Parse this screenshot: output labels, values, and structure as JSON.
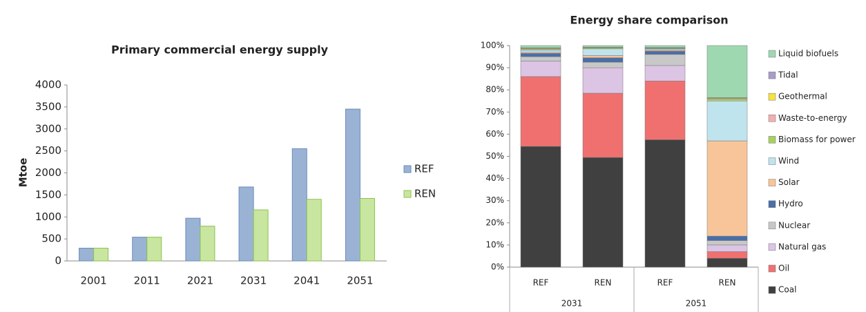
{
  "chart_data": [
    {
      "type": "bar",
      "title": "Primary commercial energy supply",
      "ylabel": "Mtoe",
      "categories": [
        "2001",
        "2011",
        "2021",
        "2031",
        "2041",
        "2051"
      ],
      "series": [
        {
          "name": "REF",
          "color": "#9ab3d5",
          "values": [
            290,
            540,
            970,
            1680,
            2550,
            3450
          ]
        },
        {
          "name": "REN",
          "color": "#c8e6a0",
          "values": [
            290,
            540,
            790,
            1160,
            1400,
            1420
          ]
        }
      ],
      "ylim": [
        0,
        4000
      ],
      "yticks": [
        0,
        500,
        1000,
        1500,
        2000,
        2500,
        3000,
        3500,
        4000
      ],
      "legend": "right"
    },
    {
      "type": "stacked_bar",
      "title": "Energy share comparison",
      "categories": [
        "REF",
        "REN",
        "REF",
        "REN"
      ],
      "groups": [
        "2031",
        "2051"
      ],
      "series": [
        {
          "name": "Coal",
          "color": "#404040",
          "values": [
            54.5,
            49.5,
            57.5,
            4
          ]
        },
        {
          "name": "Oil",
          "color": "#f07070",
          "values": [
            31.5,
            29,
            26.5,
            3
          ]
        },
        {
          "name": "Natural gas",
          "color": "#dcc4e4",
          "values": [
            7,
            11.5,
            7,
            3
          ]
        },
        {
          "name": "Nuclear",
          "color": "#c8c8c8",
          "values": [
            2,
            2.5,
            5,
            2
          ]
        },
        {
          "name": "Hydro",
          "color": "#4a6ea8",
          "values": [
            1.5,
            2,
            1.5,
            2
          ]
        },
        {
          "name": "Solar",
          "color": "#f8c49a",
          "values": [
            0.5,
            1,
            0.5,
            43
          ]
        },
        {
          "name": "Wind",
          "color": "#bfe4ee",
          "values": [
            1,
            3,
            0.5,
            18
          ]
        },
        {
          "name": "Biomass for power",
          "color": "#a8d060",
          "values": [
            0.5,
            0.5,
            0.3,
            1
          ]
        },
        {
          "name": "Waste-to-energy",
          "color": "#f0b0b0",
          "values": [
            0.3,
            0.2,
            0.2,
            0.3
          ]
        },
        {
          "name": "Geothermal",
          "color": "#f8e040",
          "values": [
            0.2,
            0.1,
            0.1,
            0.2
          ]
        },
        {
          "name": "Tidal",
          "color": "#a89cc8",
          "values": [
            0,
            0,
            0,
            0
          ]
        },
        {
          "name": "Liquid biofuels",
          "color": "#9ed8b0",
          "values": [
            1,
            0.7,
            0.9,
            23.5
          ]
        }
      ],
      "ylim": [
        0,
        100
      ],
      "yticks": [
        {
          "value": 0,
          "label": "0%"
        },
        {
          "value": 10,
          "label": "10%"
        },
        {
          "value": 20,
          "label": "20%"
        },
        {
          "value": 30,
          "label": "30%"
        },
        {
          "value": 40,
          "label": "40%"
        },
        {
          "value": 50,
          "label": "50%"
        },
        {
          "value": 60,
          "label": "60%"
        },
        {
          "value": 70,
          "label": "70%"
        },
        {
          "value": 80,
          "label": "80%"
        },
        {
          "value": 90,
          "label": "90%"
        },
        {
          "value": 100,
          "label": "100%"
        }
      ],
      "legend": "right"
    }
  ]
}
